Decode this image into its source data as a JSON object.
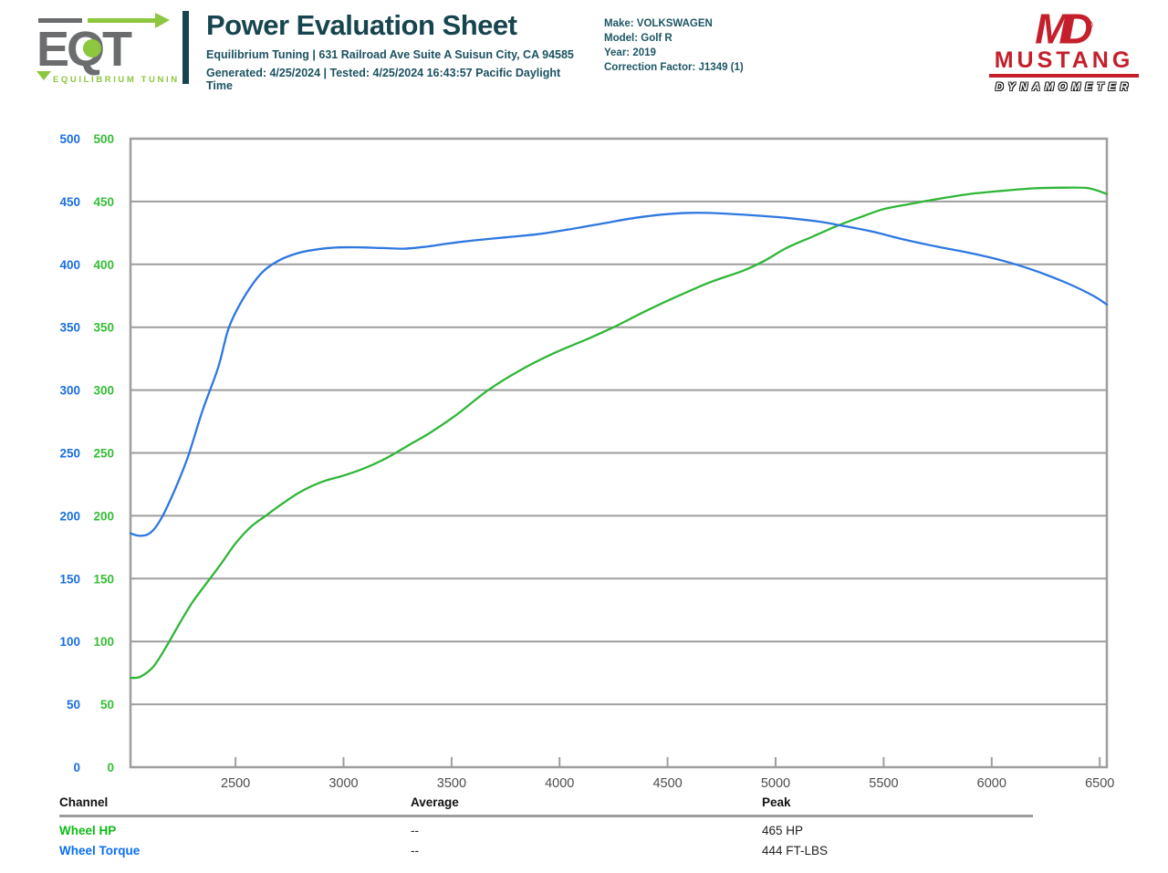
{
  "header": {
    "logo": {
      "text": "EQT",
      "subtext": "EQUILIBRIUM TUNING"
    },
    "title": "Power Evaluation Sheet",
    "address": "Equilibrium Tuning | 631 Railroad Ave Suite A Suisun City, CA 94585",
    "generated": "Generated: 4/25/2024 | Tested: 4/25/2024 16:43:57 Pacific Daylight Time",
    "vehicle": {
      "make": "Make: VOLKSWAGEN",
      "model": "Model: Golf R",
      "year": "Year: 2019",
      "correction": "Correction Factor: J1349 (1)"
    },
    "dyno_logo": {
      "monogram": "MD",
      "reg": "®",
      "name": "MUSTANG",
      "sub": "DYNAMOMETER"
    }
  },
  "chart_data": {
    "type": "line",
    "title": "",
    "xlabel": "",
    "ylabel": "",
    "x_range": [
      2014,
      6533
    ],
    "y_range": [
      0,
      500
    ],
    "x_ticks": [
      2500,
      3000,
      3500,
      4000,
      4500,
      5000,
      5500,
      6000,
      6500
    ],
    "y_ticks": [
      0,
      50,
      100,
      150,
      200,
      250,
      300,
      350,
      400,
      450,
      500
    ],
    "grid": "horizontal-only",
    "grid_color": "#9e9e9e",
    "x_tick_text_color": "#4c4d4f",
    "y_axis_columns": [
      {
        "series": "Wheel Torque",
        "color": "#1a6fdf"
      },
      {
        "series": "Wheel HP",
        "color": "#35bd35"
      }
    ],
    "legend_position": "bottom-table",
    "series": [
      {
        "name": "Wheel HP",
        "color": "#2fb637",
        "peak": "465 HP",
        "points": [
          [
            2014,
            71
          ],
          [
            2060,
            72
          ],
          [
            2120,
            80
          ],
          [
            2180,
            96
          ],
          [
            2240,
            114
          ],
          [
            2300,
            131
          ],
          [
            2360,
            145
          ],
          [
            2430,
            161
          ],
          [
            2500,
            178
          ],
          [
            2570,
            191
          ],
          [
            2640,
            200
          ],
          [
            2720,
            210
          ],
          [
            2800,
            219
          ],
          [
            2900,
            227
          ],
          [
            3000,
            232
          ],
          [
            3100,
            238
          ],
          [
            3200,
            246
          ],
          [
            3300,
            256
          ],
          [
            3400,
            266
          ],
          [
            3520,
            280
          ],
          [
            3670,
            300
          ],
          [
            3820,
            316
          ],
          [
            3970,
            329
          ],
          [
            4120,
            340
          ],
          [
            4250,
            350
          ],
          [
            4400,
            363
          ],
          [
            4550,
            375
          ],
          [
            4700,
            386
          ],
          [
            4850,
            395
          ],
          [
            4950,
            403
          ],
          [
            5050,
            413
          ],
          [
            5170,
            422
          ],
          [
            5290,
            431
          ],
          [
            5400,
            438
          ],
          [
            5500,
            444
          ],
          [
            5620,
            448
          ],
          [
            5750,
            452
          ],
          [
            5900,
            456
          ],
          [
            6050,
            458.5
          ],
          [
            6200,
            460.5
          ],
          [
            6350,
            461
          ],
          [
            6450,
            460.5
          ],
          [
            6533,
            456
          ]
        ]
      },
      {
        "name": "Wheel Torque",
        "color": "#2e78e0",
        "peak": "444 FT-LBS",
        "points": [
          [
            2014,
            186
          ],
          [
            2060,
            184
          ],
          [
            2110,
            187
          ],
          [
            2160,
            199
          ],
          [
            2220,
            221
          ],
          [
            2280,
            247
          ],
          [
            2350,
            285
          ],
          [
            2420,
            318
          ],
          [
            2470,
            350
          ],
          [
            2540,
            374
          ],
          [
            2620,
            393
          ],
          [
            2700,
            403
          ],
          [
            2790,
            409
          ],
          [
            2880,
            412
          ],
          [
            2980,
            413.5
          ],
          [
            3080,
            413.5
          ],
          [
            3180,
            413
          ],
          [
            3280,
            412.5
          ],
          [
            3380,
            414
          ],
          [
            3480,
            416.5
          ],
          [
            3600,
            419
          ],
          [
            3750,
            421.5
          ],
          [
            3900,
            424
          ],
          [
            4050,
            428
          ],
          [
            4200,
            432.5
          ],
          [
            4350,
            437
          ],
          [
            4500,
            440
          ],
          [
            4620,
            441
          ],
          [
            4750,
            440.5
          ],
          [
            4900,
            439
          ],
          [
            5050,
            437
          ],
          [
            5200,
            434
          ],
          [
            5300,
            431
          ],
          [
            5450,
            426
          ],
          [
            5600,
            419.5
          ],
          [
            5750,
            414
          ],
          [
            5900,
            409
          ],
          [
            6050,
            403
          ],
          [
            6200,
            395
          ],
          [
            6350,
            385
          ],
          [
            6470,
            375
          ],
          [
            6533,
            368
          ]
        ]
      }
    ]
  },
  "table": {
    "headers": {
      "channel": "Channel",
      "average": "Average",
      "peak": "Peak"
    },
    "rows": [
      {
        "channel": "Wheel HP",
        "average": "--",
        "peak": "465 HP",
        "color": "#0cbd17"
      },
      {
        "channel": "Wheel Torque",
        "average": "--",
        "peak": "444 FT-LBS",
        "color": "#0b6ef5"
      }
    ]
  }
}
